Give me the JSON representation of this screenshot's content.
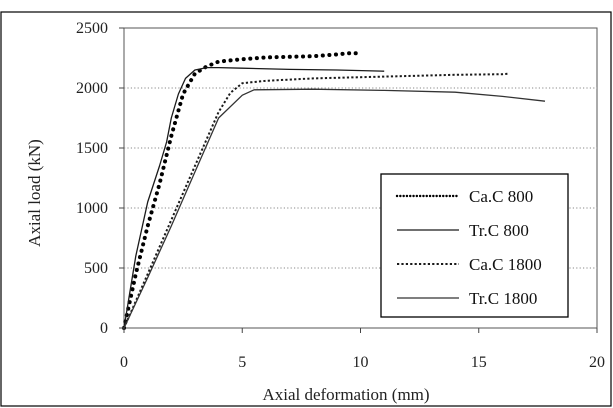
{
  "chart_data": {
    "type": "line",
    "title": "",
    "xlabel": "Axial deformation (mm)",
    "ylabel": "Axial load (kN)",
    "xlim": [
      0,
      20
    ],
    "ylim": [
      0,
      2500
    ],
    "x_ticks": [
      0,
      5,
      10,
      15,
      20
    ],
    "y_ticks": [
      0,
      500,
      1000,
      1500,
      2000,
      2500
    ],
    "grid": "horizontal dotted",
    "legend_position": "right",
    "series": [
      {
        "name": "Ca.C 800",
        "color": "#000000",
        "style": "heavy-dotted",
        "x": [
          0,
          0.5,
          1.0,
          1.5,
          2.0,
          2.5,
          3.0,
          3.5,
          4.0,
          5.0,
          6.0,
          7.0,
          8.0,
          9.0,
          9.5,
          10.0
        ],
        "y": [
          0,
          450,
          850,
          1200,
          1600,
          1950,
          2120,
          2180,
          2220,
          2240,
          2255,
          2260,
          2265,
          2280,
          2290,
          2290
        ]
      },
      {
        "name": "Tr.C 800",
        "color": "#1a1a1a",
        "style": "solid",
        "x": [
          0,
          0.5,
          1.0,
          1.5,
          1.8,
          2.0,
          2.3,
          2.6,
          3.0,
          3.5,
          4.0,
          5.0,
          7.0,
          9.0,
          11.0
        ],
        "y": [
          0,
          600,
          1050,
          1350,
          1550,
          1750,
          1950,
          2080,
          2150,
          2170,
          2170,
          2165,
          2155,
          2150,
          2140
        ]
      },
      {
        "name": "Ca.C 1800",
        "color": "#1a1a1a",
        "style": "dotted",
        "x": [
          0,
          1.0,
          2.0,
          3.0,
          4.0,
          4.5,
          5.0,
          6.0,
          8.0,
          10.0,
          12.0,
          14.0,
          16.0,
          16.3
        ],
        "y": [
          0,
          450,
          900,
          1350,
          1800,
          1960,
          2040,
          2060,
          2080,
          2090,
          2100,
          2110,
          2115,
          2120
        ]
      },
      {
        "name": "Tr.C 1800",
        "color": "#333333",
        "style": "solid",
        "x": [
          0,
          1.0,
          2.0,
          3.0,
          4.0,
          5.0,
          5.5,
          8.0,
          11.0,
          14.0,
          16.0,
          17.8
        ],
        "y": [
          0,
          420,
          850,
          1300,
          1750,
          1940,
          1985,
          1990,
          1980,
          1965,
          1930,
          1890
        ]
      }
    ]
  }
}
